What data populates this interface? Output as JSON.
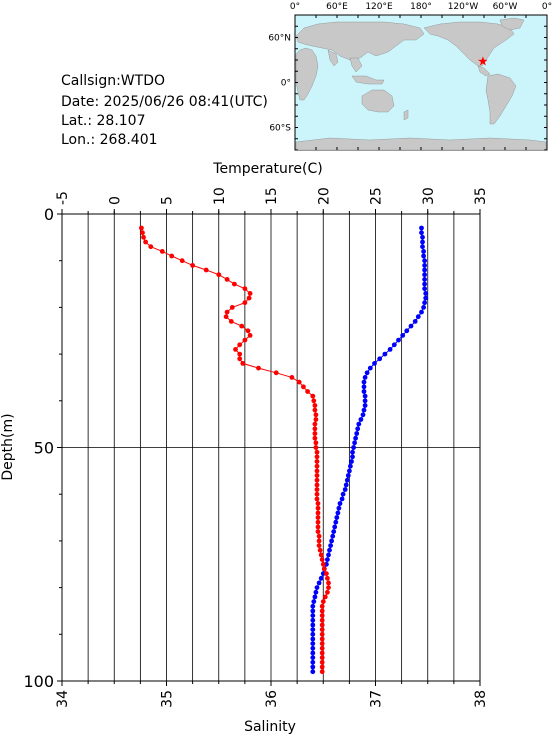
{
  "header": {
    "callsign_label": "Callsign:",
    "callsign": "WTDO",
    "date_label": "Date:",
    "date": "2025/06/26 08:41(UTC)",
    "lat_label": "Lat.:",
    "lat": "28.107",
    "lon_label": "Lon.:",
    "lon": "268.401"
  },
  "map": {
    "top_ticks": [
      "0°",
      "60°E",
      "120°E",
      "180°",
      "120°W",
      "60°W",
      "0°"
    ],
    "left_ticks": [
      "60°N",
      "0°",
      "60°S"
    ],
    "ocean_color": "#ccf5fb",
    "land_color": "#c8c8c8",
    "marker_color": "#ff0000",
    "marker_lon": 268.401,
    "marker_lat": 28.107
  },
  "chart_data": {
    "type": "line",
    "top_axis_label": "Temperature(C)",
    "bottom_axis_label": "Salinity",
    "left_axis_label": "Depth(m)",
    "temperature_ticks": [
      "-5",
      "0",
      "5",
      "10",
      "15",
      "20",
      "25",
      "30",
      "35"
    ],
    "salinity_ticks": [
      "34",
      "35",
      "36",
      "37",
      "38"
    ],
    "depth_ticks": [
      "0",
      "50",
      "100"
    ],
    "temperature_range": [
      -5,
      35
    ],
    "salinity_range": [
      34,
      38
    ],
    "depth_range": [
      0,
      100
    ],
    "grid": true,
    "series": [
      {
        "quantity": "temperature",
        "color": "#0000ff",
        "depth": [
          3,
          4,
          5,
          6,
          7,
          8,
          9,
          10,
          11,
          12,
          13,
          14,
          15,
          16,
          17,
          18,
          19,
          20,
          21,
          22,
          23,
          24,
          25,
          26,
          27,
          28,
          29,
          30,
          31,
          32,
          33,
          34,
          35,
          36,
          37,
          38,
          39,
          40,
          41,
          42,
          43,
          44,
          45,
          46,
          47,
          48,
          49,
          50,
          51,
          52,
          53,
          54,
          55,
          56,
          57,
          58,
          59,
          60,
          61,
          62,
          63,
          64,
          65,
          66,
          67,
          68,
          69,
          70,
          71,
          72,
          73,
          74,
          75,
          76,
          77,
          78,
          79,
          80,
          81,
          82,
          83,
          84,
          85,
          86,
          87,
          88,
          89,
          90,
          91,
          92,
          93,
          94,
          95,
          96,
          97,
          98
        ],
        "values": [
          29.4,
          29.4,
          29.5,
          29.5,
          29.5,
          29.6,
          29.6,
          29.7,
          29.7,
          29.7,
          29.7,
          29.7,
          29.7,
          29.7,
          29.8,
          29.8,
          29.7,
          29.6,
          29.4,
          29.1,
          28.8,
          28.4,
          28.0,
          27.6,
          27.2,
          26.8,
          26.4,
          25.9,
          25.4,
          24.9,
          24.5,
          24.2,
          24.0,
          23.9,
          23.9,
          23.9,
          24.0,
          24.0,
          24.0,
          23.9,
          23.8,
          23.6,
          23.4,
          23.3,
          23.2,
          23.1,
          23.0,
          22.9,
          22.8,
          22.8,
          22.7,
          22.6,
          22.5,
          22.4,
          22.3,
          22.2,
          22.1,
          21.9,
          21.8,
          21.6,
          21.5,
          21.4,
          21.3,
          21.2,
          21.1,
          21.0,
          20.9,
          20.8,
          20.7,
          20.6,
          20.5,
          20.4,
          20.3,
          20.1,
          20.0,
          19.8,
          19.6,
          19.4,
          19.3,
          19.2,
          19.1,
          19.0,
          19.0,
          19.0,
          19.0,
          19.0,
          19.0,
          19.0,
          19.0,
          19.0,
          19.0,
          19.0,
          19.0,
          19.0,
          19.0,
          19.0
        ]
      },
      {
        "quantity": "salinity",
        "color": "#ff0000",
        "depth": [
          3,
          4,
          5,
          6,
          7,
          8,
          9,
          10,
          11,
          12,
          13,
          14,
          15,
          16,
          17,
          18,
          19,
          20,
          21,
          22,
          23,
          24,
          25,
          26,
          27,
          28,
          29,
          30,
          31,
          32,
          33,
          34,
          35,
          36,
          37,
          38,
          39,
          40,
          41,
          42,
          43,
          44,
          45,
          46,
          47,
          48,
          49,
          50,
          51,
          52,
          53,
          54,
          55,
          56,
          57,
          58,
          59,
          60,
          61,
          62,
          63,
          64,
          65,
          66,
          67,
          68,
          69,
          70,
          71,
          72,
          73,
          74,
          75,
          76,
          77,
          78,
          79,
          80,
          81,
          82,
          83,
          84,
          85,
          86,
          87,
          88,
          89,
          90,
          91,
          92,
          93,
          94,
          95,
          96,
          97,
          98
        ],
        "values": [
          34.76,
          34.77,
          34.78,
          34.8,
          34.85,
          34.96,
          35.05,
          35.15,
          35.25,
          35.38,
          35.5,
          35.58,
          35.65,
          35.75,
          35.8,
          35.79,
          35.75,
          35.63,
          35.58,
          35.57,
          35.62,
          35.72,
          35.78,
          35.8,
          35.75,
          35.7,
          35.66,
          35.7,
          35.7,
          35.73,
          35.88,
          36.05,
          36.2,
          36.27,
          36.31,
          36.35,
          36.4,
          36.41,
          36.42,
          36.42,
          36.43,
          36.43,
          36.42,
          36.42,
          36.42,
          36.42,
          36.43,
          36.43,
          36.44,
          36.44,
          36.44,
          36.44,
          36.44,
          36.44,
          36.44,
          36.44,
          36.44,
          36.44,
          36.44,
          36.45,
          36.45,
          36.45,
          36.45,
          36.45,
          36.45,
          36.45,
          36.46,
          36.46,
          36.46,
          36.47,
          36.48,
          36.49,
          36.5,
          36.51,
          36.53,
          36.54,
          36.55,
          36.55,
          36.54,
          36.52,
          36.5,
          36.49,
          36.49,
          36.49,
          36.49,
          36.49,
          36.49,
          36.49,
          36.49,
          36.49,
          36.49,
          36.49,
          36.49,
          36.49,
          36.49,
          36.49
        ]
      }
    ]
  }
}
